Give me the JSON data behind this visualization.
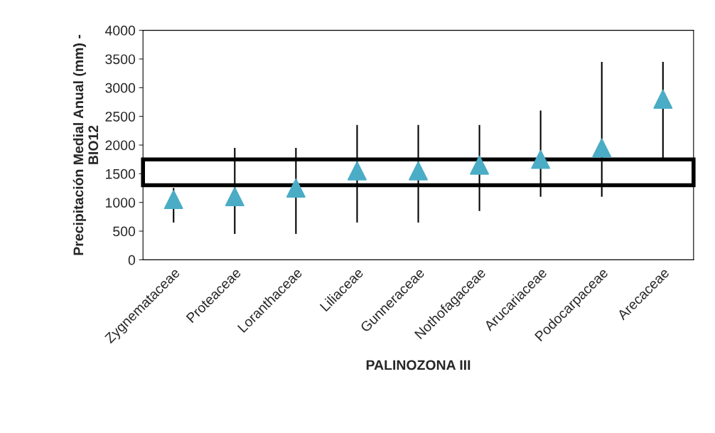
{
  "chart_data": {
    "type": "scatter",
    "xlabel": "PALINOZONA III",
    "ylabel": "Precipitación Medial Anual (mm) -\nBIO12",
    "categories": [
      "Zygnemataceae",
      "Proteaceae",
      "Loranthaceae",
      "Liliaceae",
      "Gunneraceae",
      "Nothofagaceae",
      "Arucariaceae",
      "Podocarpaceae",
      "Arecaceae"
    ],
    "series": [
      {
        "color": "#4bacc6",
        "values": [
          1050,
          1100,
          1250,
          1550,
          1550,
          1650,
          1750,
          1950,
          2800
        ],
        "errors": [
          [
            650,
            1250
          ],
          [
            450,
            1950
          ],
          [
            450,
            1950
          ],
          [
            650,
            2350
          ],
          [
            650,
            2350
          ],
          [
            850,
            2350
          ],
          [
            1100,
            2600
          ],
          [
            1100,
            3450
          ],
          [
            1750,
            3450
          ]
        ]
      }
    ],
    "ylim": [
      0,
      4000
    ],
    "yticks": [
      0,
      500,
      1000,
      1500,
      2000,
      2500,
      3000,
      3500,
      4000
    ],
    "bands": [
      {
        "axis": "y",
        "from": 1300,
        "to": 1750,
        "color": "#000000"
      }
    ],
    "marker": "triangle",
    "grid": false,
    "legend": false
  }
}
